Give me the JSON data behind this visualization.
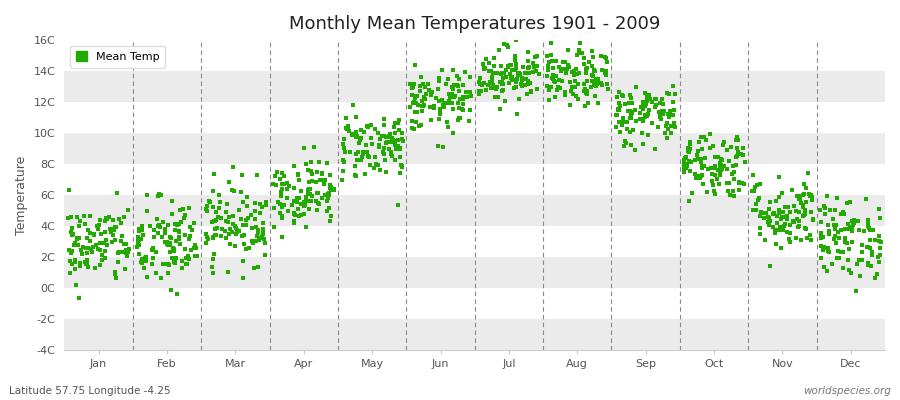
{
  "title": "Monthly Mean Temperatures 1901 - 2009",
  "ylabel": "Temperature",
  "xlabel": "",
  "subtitle": "Latitude 57.75 Longitude -4.25",
  "watermark": "worldspecies.org",
  "ylim": [
    -4,
    16
  ],
  "yticks": [
    -4,
    -2,
    0,
    2,
    4,
    6,
    8,
    10,
    12,
    14,
    16
  ],
  "ytick_labels": [
    "-4C",
    "-2C",
    "0C",
    "2C",
    "4C",
    "6C",
    "8C",
    "10C",
    "12C",
    "14C",
    "16C"
  ],
  "months": [
    "Jan",
    "Feb",
    "Mar",
    "Apr",
    "May",
    "Jun",
    "Jul",
    "Aug",
    "Sep",
    "Oct",
    "Nov",
    "Dec"
  ],
  "monthly_means": [
    2.8,
    2.8,
    4.2,
    6.2,
    9.2,
    12.0,
    13.8,
    13.5,
    11.2,
    8.0,
    4.8,
    3.2
  ],
  "monthly_stds": [
    1.3,
    1.5,
    1.3,
    1.1,
    1.1,
    1.0,
    0.9,
    0.9,
    1.0,
    1.1,
    1.2,
    1.3
  ],
  "dot_color": "#22aa00",
  "legend_label": "Mean Temp",
  "bg_color": "#ffffff",
  "stripe_light": "#ffffff",
  "stripe_dark": "#ebebeb",
  "n_years": 109,
  "seed": 42,
  "dot_size": 5,
  "dot_marker": "s"
}
